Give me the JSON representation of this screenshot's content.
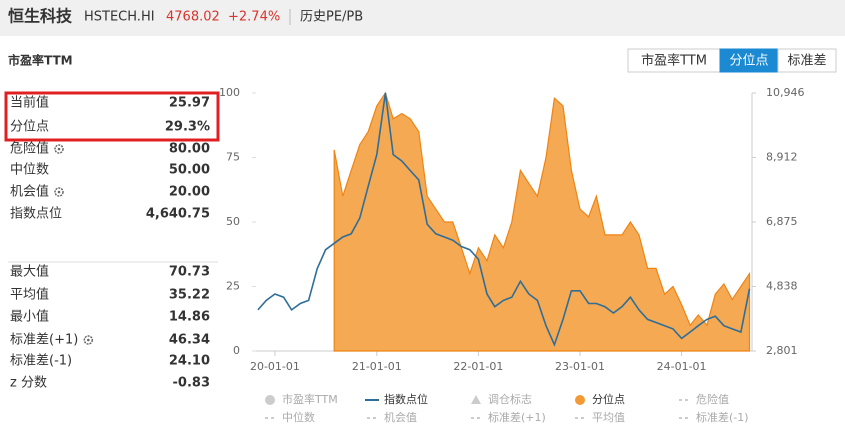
{
  "header": {
    "title": "恒生科技",
    "code": "HSTECH.HI",
    "price": "4768.02",
    "change": "+2.74%",
    "link": "历史PE/PB"
  },
  "section_title": "市盈率TTM",
  "tabs": [
    {
      "label": "市盈率TTM",
      "active": false
    },
    {
      "label": "分位点",
      "active": true
    },
    {
      "label": "标准差",
      "active": false
    }
  ],
  "stats_top": [
    {
      "label": "当前值",
      "value": "25.97",
      "gear": false
    },
    {
      "label": "分位点",
      "value": "29.3%",
      "gear": false
    },
    {
      "label": "危险值",
      "value": "80.00",
      "gear": true
    },
    {
      "label": "中位数",
      "value": "50.00",
      "gear": false
    },
    {
      "label": "机会值",
      "value": "20.00",
      "gear": true
    },
    {
      "label": "指数点位",
      "value": "4,640.75",
      "gear": false
    }
  ],
  "stats_bottom": [
    {
      "label": "最大值",
      "value": "70.73",
      "gear": false
    },
    {
      "label": "平均值",
      "value": "35.22",
      "gear": false
    },
    {
      "label": "最小值",
      "value": "14.86",
      "gear": false
    },
    {
      "label": "标准差(+1)",
      "value": "46.34",
      "gear": true
    },
    {
      "label": "标准差(-1)",
      "value": "24.10",
      "gear": false
    },
    {
      "label": "z 分数",
      "value": "-0.83",
      "gear": false
    }
  ],
  "chart_data": {
    "type": "line",
    "x": [
      "19-11-01",
      "19-12-01",
      "20-01-01",
      "20-02-01",
      "20-03-01",
      "20-04-01",
      "20-05-01",
      "20-06-01",
      "20-07-01",
      "20-08-01",
      "20-09-01",
      "20-10-01",
      "20-11-01",
      "20-12-01",
      "21-01-01",
      "21-02-01",
      "21-03-01",
      "21-04-01",
      "21-05-01",
      "21-06-01",
      "21-07-01",
      "21-08-01",
      "21-09-01",
      "21-10-01",
      "21-11-01",
      "21-12-01",
      "22-01-01",
      "22-02-01",
      "22-03-01",
      "22-04-01",
      "22-05-01",
      "22-06-01",
      "22-07-01",
      "22-08-01",
      "22-09-01",
      "22-10-01",
      "22-11-01",
      "22-12-01",
      "23-01-01",
      "23-02-01",
      "23-03-01",
      "23-04-01",
      "23-05-01",
      "23-06-01",
      "23-07-01",
      "23-08-01",
      "23-09-01",
      "23-10-01",
      "23-11-01",
      "23-12-01",
      "24-01-01",
      "24-02-01",
      "24-03-01",
      "24-04-01",
      "24-05-01",
      "24-06-01",
      "24-07-01",
      "24-08-01",
      "24-09-01"
    ],
    "xlim": [
      "19-10-25",
      "24-09-10"
    ],
    "xticks": [
      "20-01-01",
      "21-01-01",
      "22-01-01",
      "23-01-01",
      "24-01-01"
    ],
    "ylim": [
      0,
      100
    ],
    "yticks": [
      0,
      25,
      50,
      75,
      100
    ],
    "y2lim": [
      2801,
      10946
    ],
    "y2ticks": [
      {
        "value": 2801,
        "label": "2,801"
      },
      {
        "value": 4838,
        "label": "4,838"
      },
      {
        "value": 6875,
        "label": "6,875"
      },
      {
        "value": 8912,
        "label": "8,912"
      },
      {
        "value": 10946,
        "label": "10,946"
      }
    ],
    "series": [
      {
        "name": "分位点",
        "color": "#f39a34",
        "fill": true,
        "values": [
          null,
          null,
          null,
          null,
          null,
          null,
          null,
          null,
          null,
          78,
          60,
          70,
          80,
          85,
          95,
          100,
          90,
          92,
          90,
          85,
          60,
          55,
          50,
          50,
          40,
          30,
          40,
          35,
          45,
          40,
          50,
          70,
          65,
          60,
          75,
          98,
          95,
          70,
          55,
          52,
          60,
          45,
          45,
          45,
          50,
          45,
          32,
          32,
          22,
          25,
          18,
          10,
          14,
          10,
          22,
          26,
          20,
          25,
          30
        ]
      },
      {
        "name": "指数点位",
        "color": "#2e6e99",
        "axis": "y2",
        "values": [
          4100,
          4400,
          4600,
          4500,
          4100,
          4300,
          4400,
          5400,
          6000,
          6200,
          6400,
          6500,
          7000,
          8000,
          9000,
          10946,
          9000,
          8800,
          8500,
          8200,
          6800,
          6500,
          6400,
          6300,
          6100,
          6000,
          5700,
          4600,
          4200,
          4400,
          4500,
          5000,
          4600,
          4400,
          3600,
          3000,
          3800,
          4700,
          4700,
          4300,
          4300,
          4200,
          4000,
          4200,
          4500,
          4100,
          3800,
          3700,
          3600,
          3500,
          3200,
          3400,
          3600,
          3800,
          3900,
          3600,
          3500,
          3400,
          4768
        ]
      }
    ],
    "legend": [
      {
        "name": "市盈率TTM",
        "color": "#cccccc",
        "symbol": "circle"
      },
      {
        "name": "指数点位",
        "color": "#2e6e99",
        "symbol": "line"
      },
      {
        "name": "调仓标志",
        "color": "#cccccc",
        "symbol": "triangle"
      },
      {
        "name": "分位点",
        "color": "#f39a34",
        "symbol": "circle"
      },
      {
        "name": "危险值",
        "color": "#cccccc",
        "symbol": "dash"
      },
      {
        "name": "中位数",
        "color": "#cccccc",
        "symbol": "dash"
      },
      {
        "name": "机会值",
        "color": "#cccccc",
        "symbol": "dash"
      },
      {
        "name": "标准差(+1)",
        "color": "#cccccc",
        "symbol": "dash"
      },
      {
        "name": "平均值",
        "color": "#cccccc",
        "symbol": "dash"
      },
      {
        "name": "标准差(-1)",
        "color": "#cccccc",
        "symbol": "dash"
      }
    ]
  }
}
